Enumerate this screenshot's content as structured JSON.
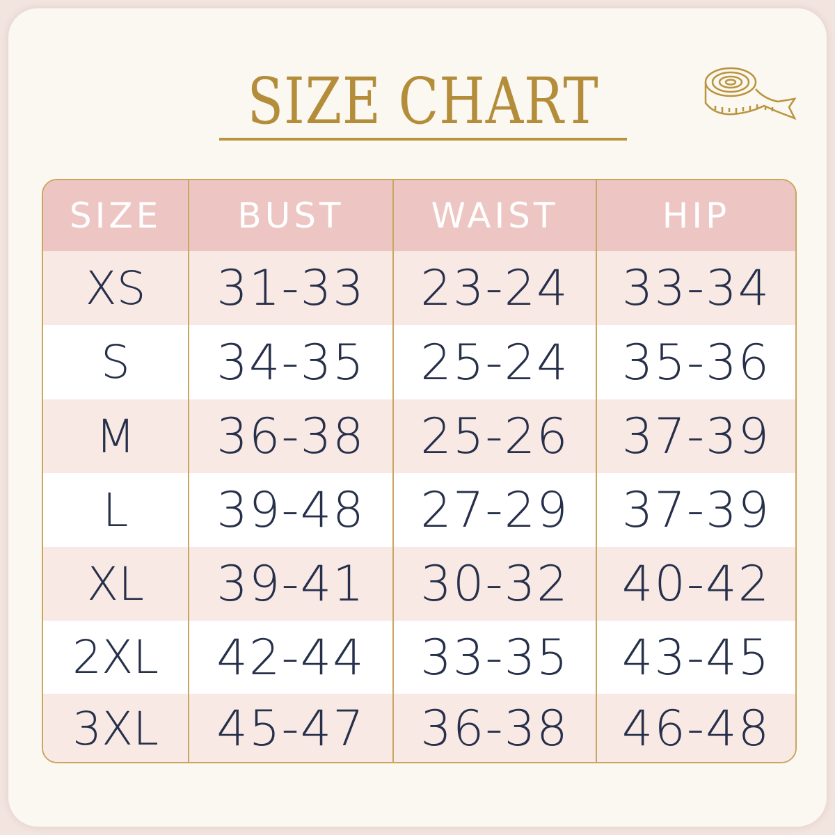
{
  "title": "SIZE CHART",
  "icon": "measuring-tape-icon",
  "colors": {
    "gold": "#b8943e",
    "header_pink": "#edc6c3",
    "row_pink": "#f8e9e5",
    "text": "#27304a"
  },
  "table": {
    "headers": [
      "SIZE",
      "BUST",
      "WAIST",
      "HIP"
    ],
    "rows": [
      [
        "XS",
        "31-33",
        "23-24",
        "33-34"
      ],
      [
        "S",
        "34-35",
        "25-24",
        "35-36"
      ],
      [
        "M",
        "36-38",
        "25-26",
        "37-39"
      ],
      [
        "L",
        "39-48",
        "27-29",
        "37-39"
      ],
      [
        "XL",
        "39-41",
        "30-32",
        "40-42"
      ],
      [
        "2XL",
        "42-44",
        "33-35",
        "43-45"
      ],
      [
        "3XL",
        "45-47",
        "36-38",
        "46-48"
      ]
    ]
  }
}
